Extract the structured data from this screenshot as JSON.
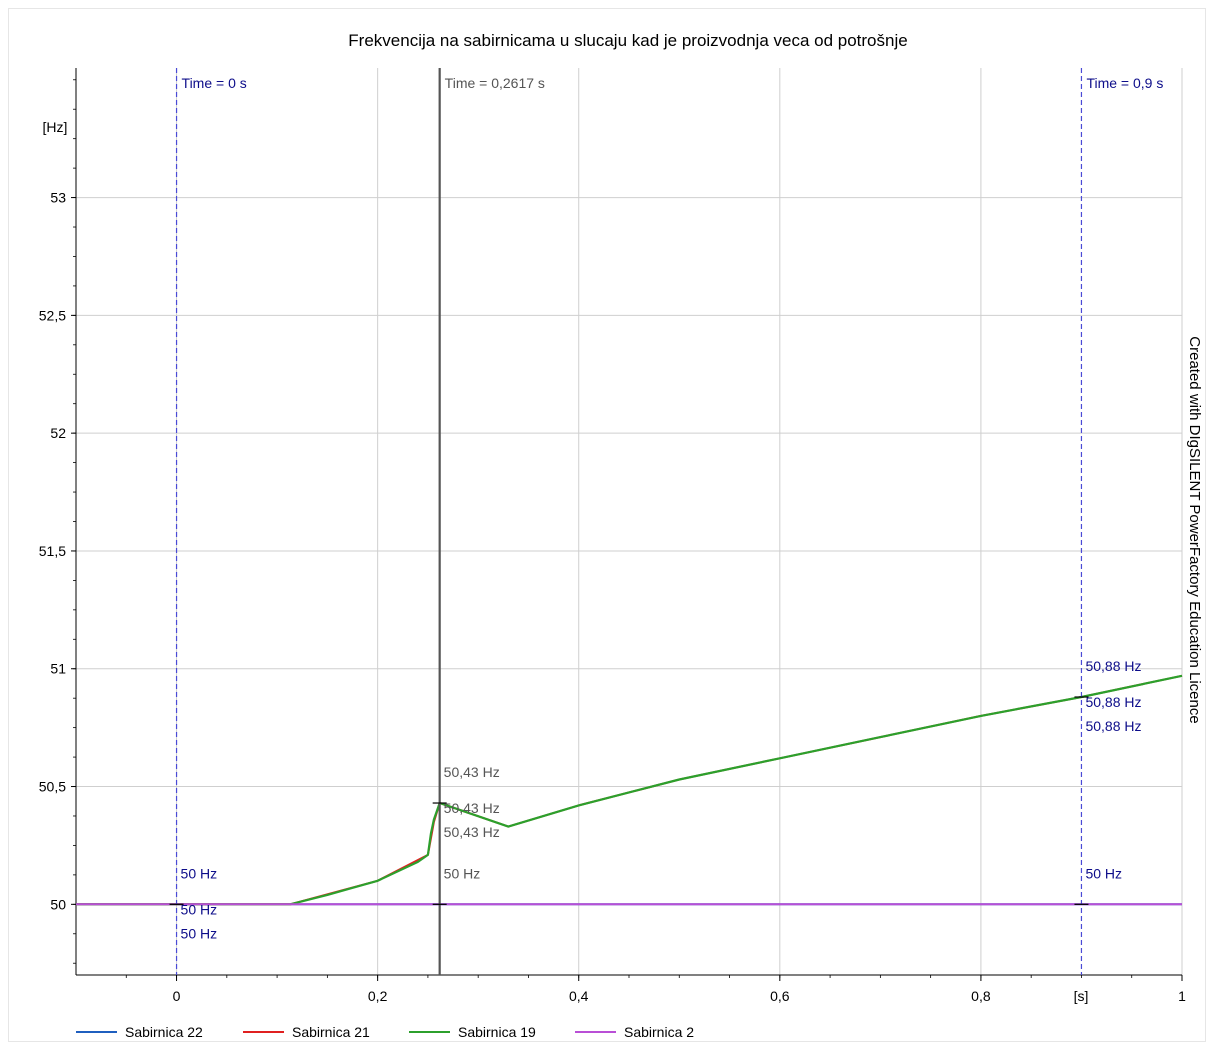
{
  "chart_data": {
    "type": "line",
    "title": "Frekvencija na sabirnicama u slucaju kad je proizvodnja veca od potrošnje",
    "ylabel": "[Hz]",
    "xlabel": "[s]",
    "watermark": "Created with DIgSILENT PowerFactory Education Licence",
    "xlim": [
      -0.1,
      1.0
    ],
    "ylim": [
      49.7,
      53.55
    ],
    "x_ticks": [
      0,
      0.2,
      0.4,
      0.6,
      0.8,
      1.0
    ],
    "x_tick_labels": [
      "0",
      "0,2",
      "0,4",
      "0,6",
      "0,8",
      "1"
    ],
    "y_ticks": [
      50,
      50.5,
      51,
      51.5,
      52,
      52.5,
      53
    ],
    "y_tick_labels": [
      "50",
      "50,5",
      "51",
      "51,5",
      "52",
      "52,5",
      "53"
    ],
    "grid": true,
    "legend_position": "bottom",
    "series": [
      {
        "name": "Sabirnica 22",
        "color": "#1f5fbf",
        "x": [
          -0.1,
          0.11,
          1.0
        ],
        "y": [
          50.0,
          50.0,
          50.0
        ]
      },
      {
        "name": "Sabirnica 21",
        "color": "#e02020",
        "x": [
          -0.1,
          0.113,
          0.2,
          0.25,
          0.256,
          0.2617,
          0.33,
          0.4,
          0.5,
          0.6,
          0.7,
          0.8,
          0.9,
          1.0
        ],
        "y": [
          50.0,
          50.0,
          50.1,
          50.21,
          50.35,
          50.43,
          50.33,
          50.42,
          50.53,
          50.62,
          50.71,
          50.8,
          50.88,
          50.97
        ]
      },
      {
        "name": "Sabirnica 19",
        "color": "#2ca02c",
        "x": [
          -0.1,
          0.113,
          0.15,
          0.2,
          0.24,
          0.25,
          0.253,
          0.256,
          0.2617,
          0.33,
          0.4,
          0.5,
          0.6,
          0.7,
          0.8,
          0.9,
          1.0
        ],
        "y": [
          50.0,
          50.0,
          50.04,
          50.1,
          50.18,
          50.21,
          50.3,
          50.36,
          50.43,
          50.33,
          50.42,
          50.53,
          50.62,
          50.71,
          50.8,
          50.88,
          50.97
        ]
      },
      {
        "name": "Sabirnica 2",
        "color": "#b94fd6",
        "x": [
          -0.1,
          1.0
        ],
        "y": [
          50.0,
          50.0
        ]
      }
    ],
    "cursors": [
      {
        "label": "Time = 0 s",
        "x": 0,
        "style": "dashed",
        "color": "#4a4ad6",
        "text_color": "#0d0d8a",
        "markers": [
          {
            "text": "50 Hz",
            "y": 50.0,
            "row": -1
          },
          {
            "text": "50 Hz",
            "y": 50.0,
            "row": 0
          },
          {
            "text": "50 Hz",
            "y": 50.0,
            "row": 1
          }
        ]
      },
      {
        "label": "Time = 0,2617 s",
        "x": 0.2617,
        "style": "solid",
        "color": "#555555",
        "text_color": "#555555",
        "markers": [
          {
            "text": "50,43 Hz",
            "y": 50.43,
            "row": -1
          },
          {
            "text": "50,43 Hz",
            "y": 50.43,
            "row": 0
          },
          {
            "text": "50,43 Hz",
            "y": 50.43,
            "row": 1
          },
          {
            "text": "50 Hz",
            "y": 50.0,
            "row": -1
          }
        ]
      },
      {
        "label": "Time = 0,9 s",
        "x": 0.9,
        "style": "dashed",
        "color": "#4a4ad6",
        "text_color": "#0d0d8a",
        "markers": [
          {
            "text": "50,88 Hz",
            "y": 50.88,
            "row": -1
          },
          {
            "text": "50,88 Hz",
            "y": 50.88,
            "row": 0
          },
          {
            "text": "50,88 Hz",
            "y": 50.88,
            "row": 1
          },
          {
            "text": "50 Hz",
            "y": 50.0,
            "row": -1
          }
        ]
      }
    ]
  }
}
